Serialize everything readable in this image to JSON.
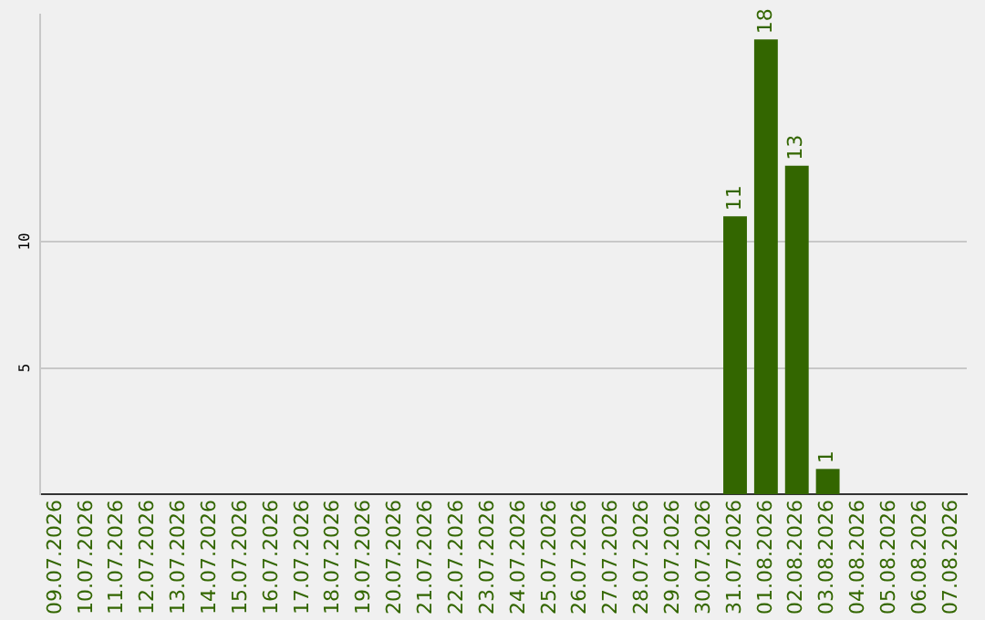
{
  "chart_data": {
    "type": "bar",
    "categories": [
      "09.07.2026",
      "10.07.2026",
      "11.07.2026",
      "12.07.2026",
      "13.07.2026",
      "14.07.2026",
      "15.07.2026",
      "16.07.2026",
      "17.07.2026",
      "18.07.2026",
      "19.07.2026",
      "20.07.2026",
      "21.07.2026",
      "22.07.2026",
      "23.07.2026",
      "24.07.2026",
      "25.07.2026",
      "26.07.2026",
      "27.07.2026",
      "28.07.2026",
      "29.07.2026",
      "30.07.2026",
      "31.07.2026",
      "01.08.2026",
      "02.08.2026",
      "03.08.2026",
      "04.08.2026",
      "05.08.2026",
      "06.08.2026",
      "07.08.2026"
    ],
    "values": [
      0,
      0,
      0,
      0,
      0,
      0,
      0,
      0,
      0,
      0,
      0,
      0,
      0,
      0,
      0,
      0,
      0,
      0,
      0,
      0,
      0,
      0,
      11,
      18,
      13,
      1,
      0,
      0,
      0,
      0
    ],
    "value_labels": [
      null,
      null,
      null,
      null,
      null,
      null,
      null,
      null,
      null,
      null,
      null,
      null,
      null,
      null,
      null,
      null,
      null,
      null,
      null,
      null,
      null,
      null,
      "11",
      "18",
      "13",
      "1",
      null,
      null,
      null,
      null
    ],
    "color": "#336600",
    "ylim": [
      0,
      19
    ],
    "yticks": [
      5,
      10
    ],
    "grid": "y"
  }
}
